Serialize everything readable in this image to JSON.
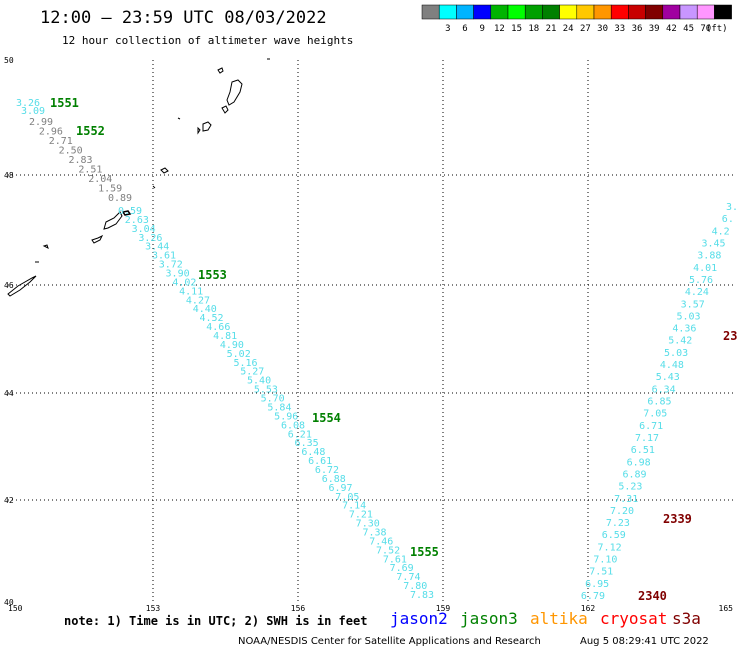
{
  "header": {
    "title": "12:00 – 23:59 UTC 08/03/2022",
    "subtitle": "12 hour collection of altimeter wave heights"
  },
  "legend": {
    "unit": "(ft)",
    "swatches": [
      {
        "color": "#808080",
        "label": ""
      },
      {
        "color": "#00ffff",
        "label": "3"
      },
      {
        "color": "#00b4ff",
        "label": "6"
      },
      {
        "color": "#0000ff",
        "label": "9"
      },
      {
        "color": "#00b400",
        "label": "12"
      },
      {
        "color": "#00ff00",
        "label": "15"
      },
      {
        "color": "#00a000",
        "label": "18"
      },
      {
        "color": "#008000",
        "label": "21"
      },
      {
        "color": "#ffff00",
        "label": "24"
      },
      {
        "color": "#ffc800",
        "label": "27"
      },
      {
        "color": "#ff9600",
        "label": "30"
      },
      {
        "color": "#ff0000",
        "label": "33"
      },
      {
        "color": "#c80000",
        "label": "36"
      },
      {
        "color": "#800000",
        "label": "39"
      },
      {
        "color": "#a000a0",
        "label": "42"
      },
      {
        "color": "#c896ff",
        "label": "45"
      },
      {
        "color": "#ff96ff",
        "label": "70"
      },
      {
        "color": "#000000",
        "label": ""
      }
    ]
  },
  "axes": {
    "lon_labels": [
      "150",
      "153",
      "156",
      "159",
      "162",
      "165"
    ],
    "lat_labels": [
      "50",
      "48",
      "46",
      "44",
      "42",
      "40"
    ]
  },
  "track_west": {
    "color": "#55dde8",
    "gray_color": "#808080",
    "gray_values": [
      "2.99",
      "2.96",
      "2.71",
      "2.50",
      "2.83",
      "2.51",
      "2.04",
      "1.59",
      "0.89"
    ],
    "first_values": [
      "3.26",
      "3.09"
    ],
    "values": [
      "0.59",
      "2.63",
      "3.04",
      "3.26",
      "3.44",
      "3.61",
      "3.72",
      "3.90",
      "4.02",
      "4.11",
      "4.27",
      "4.40",
      "4.52",
      "4.66",
      "4.81",
      "4.90",
      "5.02",
      "5.16",
      "5.27",
      "5.40",
      "5.53",
      "5.70",
      "5.84",
      "5.96",
      "6.08",
      "6.21",
      "6.35",
      "6.48",
      "6.61",
      "6.72",
      "6.88",
      "6.97",
      "7.05",
      "7.14",
      "7.21",
      "7.30",
      "7.38",
      "7.46",
      "7.52",
      "7.61",
      "7.69",
      "7.74",
      "7.80",
      "7.83"
    ]
  },
  "track_east": {
    "color": "#55dde8",
    "values": [
      "3.",
      "6.",
      "4.2",
      "3.45",
      "3.88",
      "4.01",
      "5.76",
      "4.24",
      "3.57",
      "5.03",
      "4.36",
      "5.42",
      "5.03",
      "4.48",
      "5.43",
      "6.34",
      "6.85",
      "7.05",
      "6.71",
      "7.17",
      "6.51",
      "6.98",
      "6.89",
      "5.23",
      "7.31",
      "7.20",
      "7.23",
      "6.59",
      "7.12",
      "7.10",
      "7.51",
      "6.95",
      "6.79"
    ]
  },
  "time_labels": [
    {
      "text": "1551",
      "color": "#008000"
    },
    {
      "text": "1552",
      "color": "#008000"
    },
    {
      "text": "1553",
      "color": "#008000"
    },
    {
      "text": "1554",
      "color": "#008000"
    },
    {
      "text": "1555",
      "color": "#008000"
    },
    {
      "text": "23",
      "color": "#800000"
    },
    {
      "text": "2339",
      "color": "#800000"
    },
    {
      "text": "2340",
      "color": "#800000"
    }
  ],
  "footer": {
    "note": "note: 1) Time is in UTC; 2) SWH is in feet",
    "satellites": [
      {
        "name": "jason2",
        "color": "#0000ff"
      },
      {
        "name": "jason3",
        "color": "#008000"
      },
      {
        "name": "altika",
        "color": "#ff9600"
      },
      {
        "name": "cryosat",
        "color": "#ff0000"
      },
      {
        "name": "s3a",
        "color": "#800000"
      }
    ],
    "credit": "NOAA/NESDIS Center for Satellite Applications and Research",
    "timestamp": "Aug  5 08:29:41 UTC 2022"
  }
}
